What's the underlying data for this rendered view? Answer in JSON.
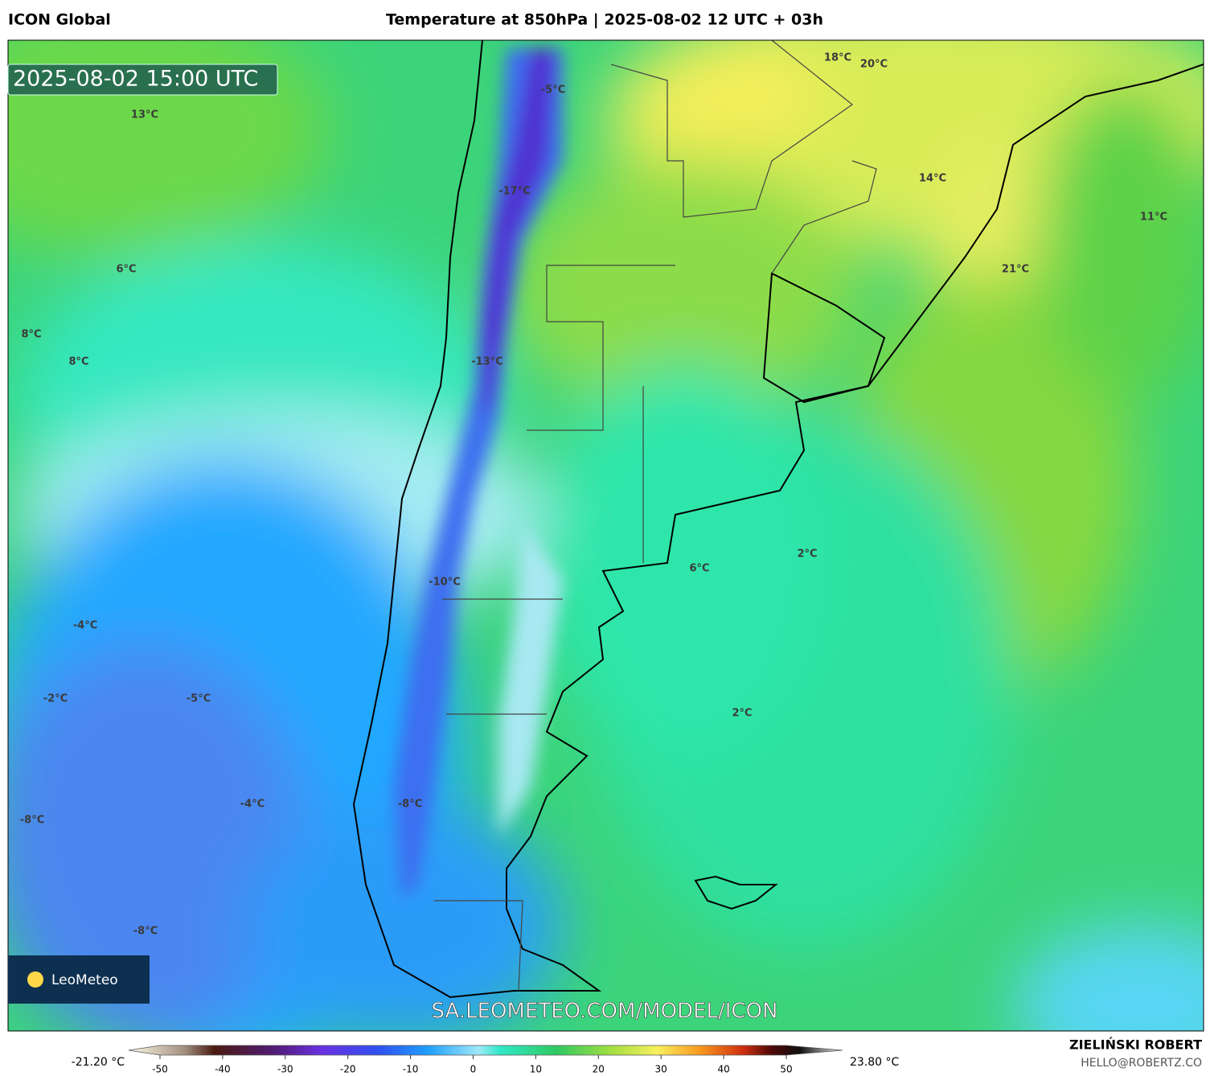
{
  "header": {
    "model": "ICON Global",
    "title": "Temperature at 850hPa | 2025-08-02 12 UTC + 03h"
  },
  "map": {
    "timestamp": "2025-08-02 15:00 UTC",
    "url": "SA.LEOMETEO.COM/MODEL/ICON",
    "logo": "LeoMeteo",
    "labels": [
      "18°C",
      "20°C",
      "13°C",
      "-5°C",
      "-17°C",
      "14°C",
      "11°C",
      "6°C",
      "21°C",
      "8°C",
      "8°C",
      "-13°C",
      "2°C",
      "6°C",
      "-10°C",
      "-4°C",
      "-2°C",
      "-5°C",
      "2°C",
      "-4°C",
      "-8°C",
      "-8°C",
      "-8°C"
    ]
  },
  "colorbar": {
    "min_label": "-21.20 °C",
    "max_label": "23.80 °C",
    "ticks": [
      -50,
      -40,
      -30,
      -20,
      -10,
      0,
      10,
      20,
      30,
      40,
      50
    ]
  },
  "credits": {
    "author": "ZIELIŃSKI ROBERT",
    "email": "HELLO@ROBERTZ.CO"
  }
}
